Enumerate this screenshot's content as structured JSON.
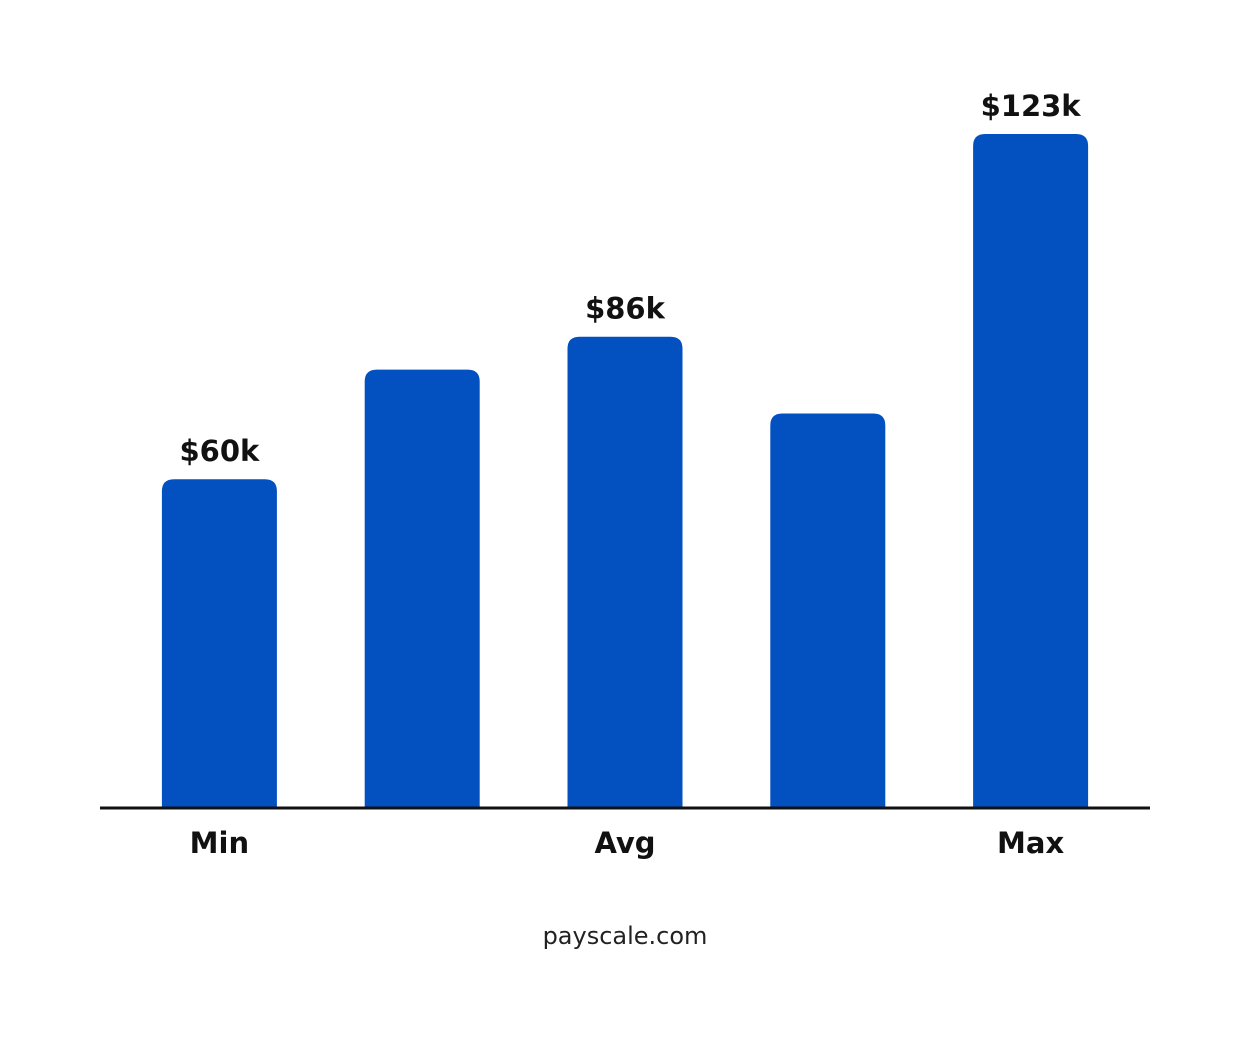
{
  "chart_data": {
    "type": "bar",
    "categories": [
      "Min",
      null,
      "Avg",
      null,
      "Max"
    ],
    "values": [
      60,
      80,
      86,
      72,
      123
    ],
    "value_labels": [
      "$60k",
      null,
      "$86k",
      null,
      "$123k"
    ],
    "color": "#0351c1",
    "source": "payscale.com"
  }
}
